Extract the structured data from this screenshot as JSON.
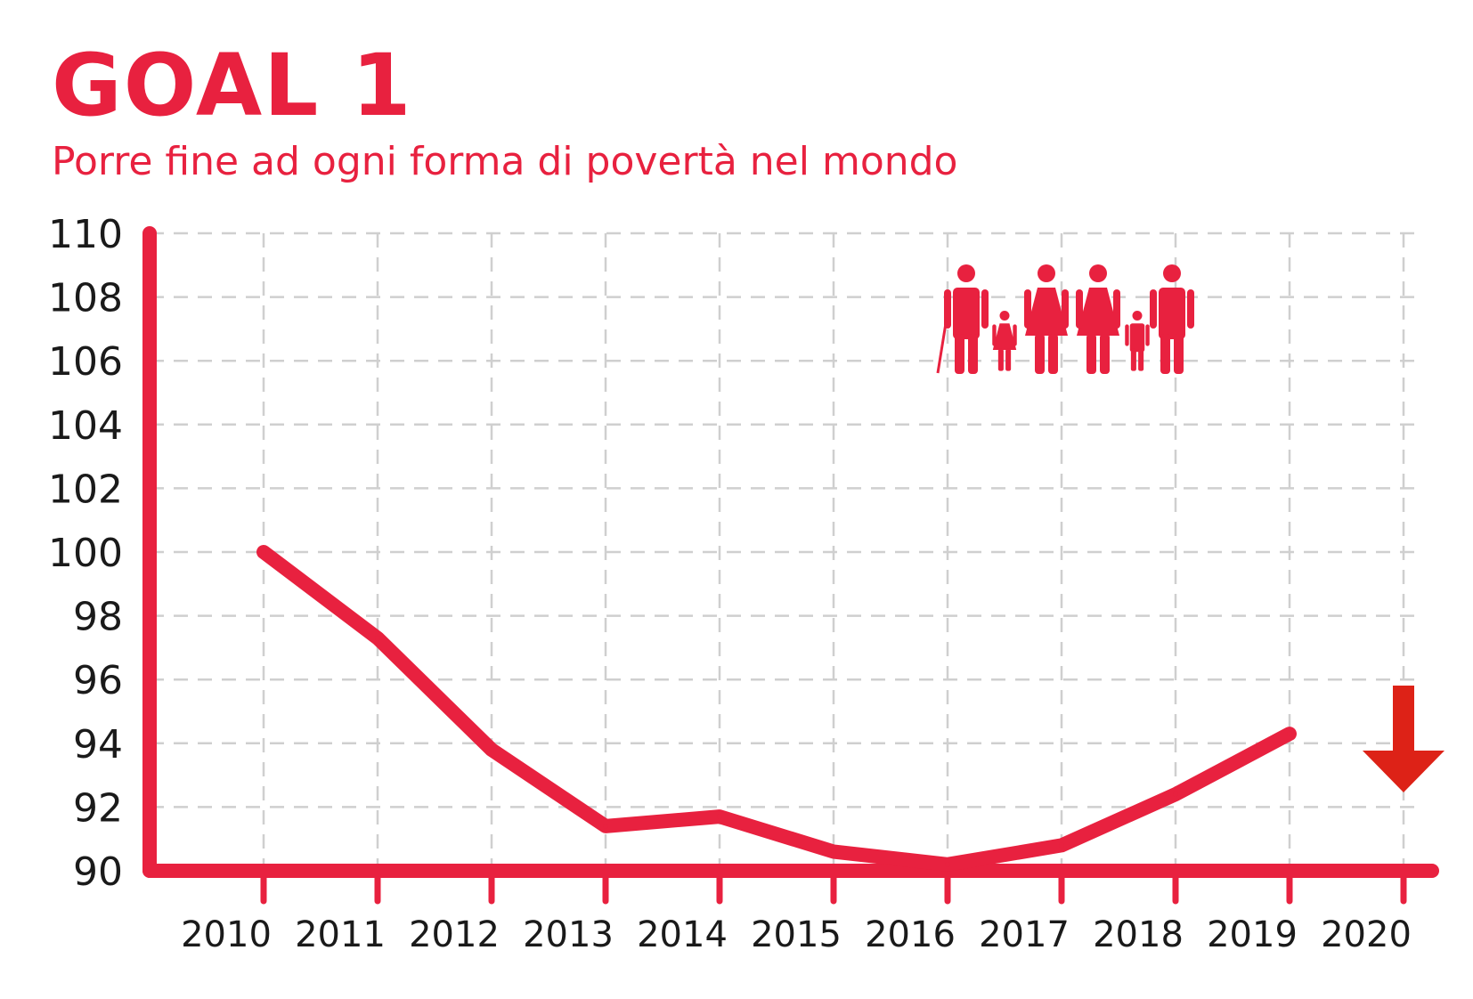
{
  "header": {
    "title": "GOAL 1",
    "subtitle": "Porre fine ad ogni forma di povertà nel mondo"
  },
  "icons": {
    "family": "family-icon",
    "trend": "down-arrow-icon"
  },
  "colors": {
    "accent": "#e8213f",
    "arrow": "#dd2217",
    "grid": "#cfcfcf",
    "text": "#1a1a1a"
  },
  "chart_data": {
    "type": "line",
    "x": [
      2010,
      2011,
      2012,
      2013,
      2014,
      2015,
      2016,
      2017,
      2018,
      2019
    ],
    "categories": [
      "2010",
      "2011",
      "2012",
      "2013",
      "2014",
      "2015",
      "2016",
      "2017",
      "2018",
      "2019",
      "2020"
    ],
    "series": [
      {
        "values": [
          100,
          97.3,
          93.8,
          91.4,
          91.7,
          90.6,
          90.2,
          90.8,
          92.4,
          94.3
        ]
      }
    ],
    "ylim": [
      90,
      110
    ],
    "yticks": [
      "90",
      "92",
      "94",
      "96",
      "98",
      "100",
      "102",
      "104",
      "106",
      "108",
      "110"
    ],
    "grid": true,
    "annotation": {
      "type": "down-arrow",
      "x": "2020",
      "meaning": "decrease"
    }
  }
}
